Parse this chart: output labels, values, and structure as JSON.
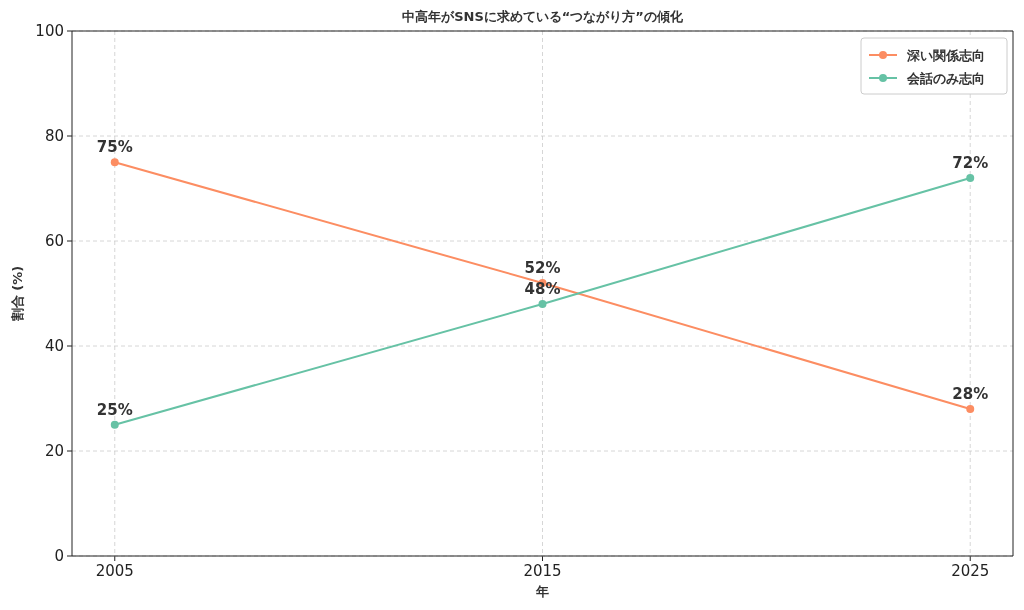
{
  "chart_data": {
    "type": "line",
    "title": "中高年がSNSに求めている“つながり方”の傾化",
    "xlabel": "年",
    "ylabel": "割合 (%)",
    "x": [
      2005,
      2015,
      2025
    ],
    "xlim": [
      2004,
      2026
    ],
    "xticks": [
      2005,
      2015,
      2025
    ],
    "ylim": [
      0,
      100
    ],
    "yticks": [
      0,
      20,
      40,
      60,
      80,
      100
    ],
    "grid": true,
    "legend": "top right",
    "marker": "circle",
    "line_style": "solid",
    "series": [
      {
        "name": "深い関係志向",
        "color": "#fc8d62",
        "values": [
          75,
          52,
          28
        ],
        "value_labels": [
          "75%",
          "52%",
          "28%"
        ]
      },
      {
        "name": "会話のみ志向",
        "color": "#66c2a5",
        "values": [
          25,
          48,
          72
        ],
        "value_labels": [
          "25%",
          "48%",
          "72%"
        ]
      }
    ]
  }
}
